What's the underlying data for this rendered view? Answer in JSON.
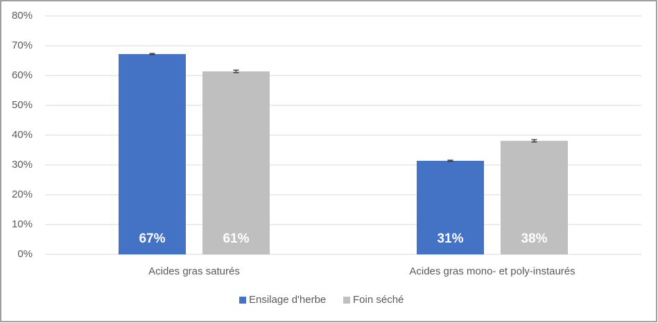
{
  "chart_data": {
    "type": "bar",
    "categories": [
      "Acides gras saturés",
      "Acides gras mono- et poly-instaurés"
    ],
    "series": [
      {
        "name": "Ensilage d'herbe",
        "color": "#4472c4",
        "values": [
          67.2,
          31.4
        ],
        "errors": [
          0.2,
          0.2
        ],
        "value_labels": [
          "67%",
          "31%"
        ]
      },
      {
        "name": "Foin séché",
        "color": "#bfbfbf",
        "values": [
          61.4,
          38.1
        ],
        "errors": [
          0.4,
          0.4
        ],
        "value_labels": [
          "61%",
          "38%"
        ]
      }
    ],
    "ylim": [
      0,
      80
    ],
    "yticks": [
      {
        "value": 0,
        "label": "0%"
      },
      {
        "value": 10,
        "label": "10%"
      },
      {
        "value": 20,
        "label": "20%"
      },
      {
        "value": 30,
        "label": "30%"
      },
      {
        "value": 40,
        "label": "40%"
      },
      {
        "value": 50,
        "label": "50%"
      },
      {
        "value": 60,
        "label": "60%"
      },
      {
        "value": 70,
        "label": "70%"
      },
      {
        "value": 80,
        "label": "80%"
      }
    ],
    "grid": true,
    "legend": "bottom"
  }
}
